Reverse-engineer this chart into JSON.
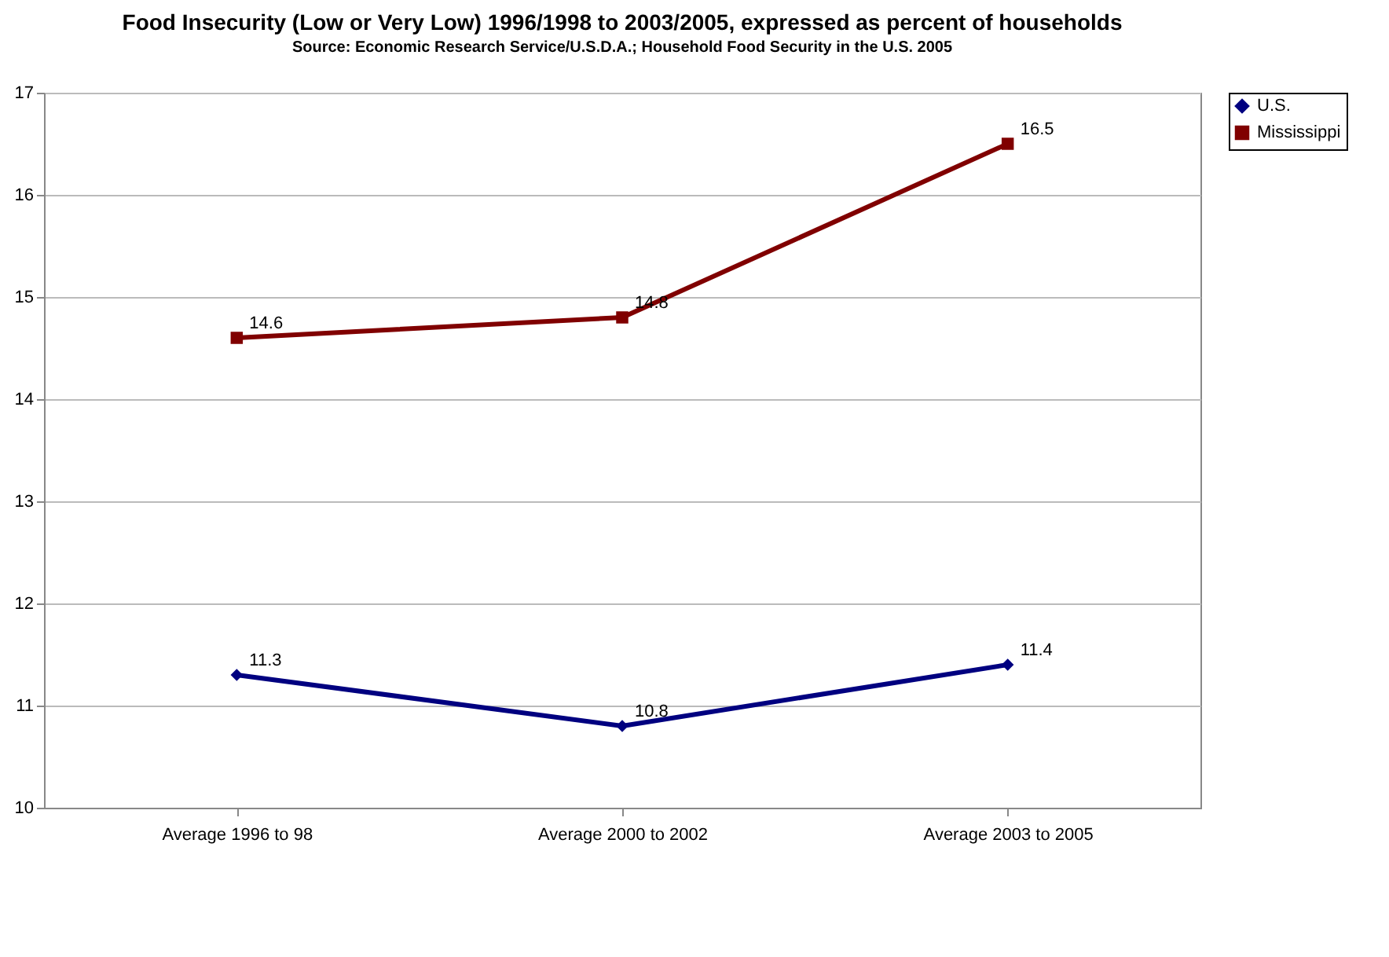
{
  "chart_data": {
    "type": "line",
    "title": "Food Insecurity (Low or Very Low) 1996/1998 to 2003/2005, expressed as percent of households",
    "subtitle": "Source: Economic Research Service/U.S.D.A.; Household Food Security in the U.S. 2005",
    "categories": [
      "Average 1996 to 98",
      "Average 2000 to 2002",
      "Average 2003 to 2005"
    ],
    "series": [
      {
        "name": "U.S.",
        "color": "#000080",
        "marker": "diamond",
        "values": [
          11.3,
          10.8,
          11.4
        ]
      },
      {
        "name": "Mississippi",
        "color": "#800000",
        "marker": "square",
        "values": [
          14.6,
          14.8,
          16.5
        ]
      }
    ],
    "ylim": [
      10,
      17
    ],
    "yticks": [
      10,
      11,
      12,
      13,
      14,
      15,
      16,
      17
    ],
    "grid": "y",
    "legend": "right",
    "data_labels": true,
    "line_style": "solid"
  }
}
